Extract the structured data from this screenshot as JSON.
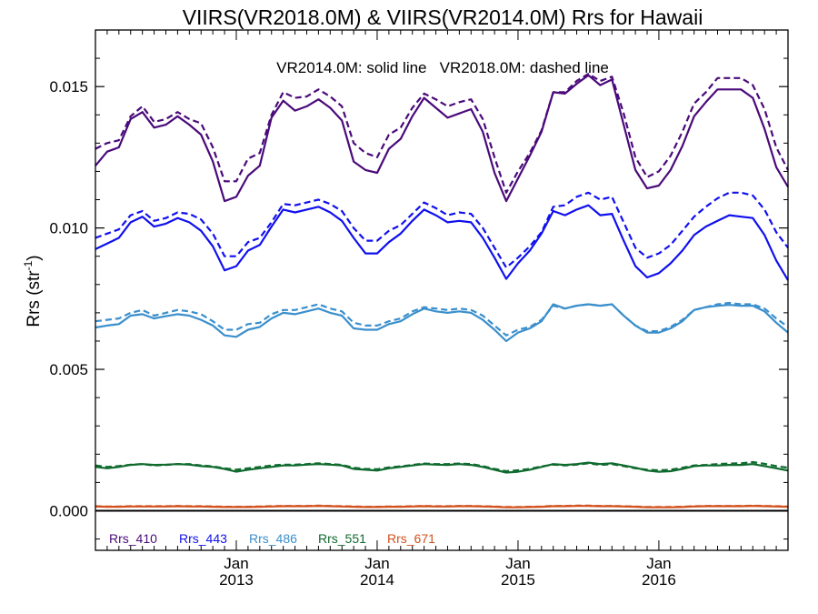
{
  "chart_data": {
    "type": "line",
    "title": "VIIRS(VR2018.0M) & VIIRS(VR2014.0M)  Rrs for Hawaii",
    "annotation": "VR2014.0M: solid line   VR2018.0M: dashed line",
    "ylabel": "Rrs (str",
    "ylabel_sup": "-1",
    "ylabel_close": ")",
    "ylim": [
      -0.0014,
      0.017
    ],
    "xlim": [
      "2012-01",
      "2016-12"
    ],
    "y_ticks": [
      {
        "value": 0.0,
        "label": "0.000"
      },
      {
        "value": 0.005,
        "label": "0.005"
      },
      {
        "value": 0.01,
        "label": "0.010"
      },
      {
        "value": 0.015,
        "label": "0.015"
      }
    ],
    "x_ticks": [
      {
        "value": "2013-01",
        "month": "Jan",
        "year": "2013"
      },
      {
        "value": "2014-01",
        "month": "Jan",
        "year": "2014"
      },
      {
        "value": "2015-01",
        "month": "Jan",
        "year": "2015"
      },
      {
        "value": "2016-01",
        "month": "Jan",
        "year": "2016"
      }
    ],
    "x_dates": [
      "2012-01",
      "2012-02",
      "2012-03",
      "2012-04",
      "2012-05",
      "2012-06",
      "2012-07",
      "2012-08",
      "2012-09",
      "2012-10",
      "2012-11",
      "2012-12",
      "2013-01",
      "2013-02",
      "2013-03",
      "2013-04",
      "2013-05",
      "2013-06",
      "2013-07",
      "2013-08",
      "2013-09",
      "2013-10",
      "2013-11",
      "2013-12",
      "2014-01",
      "2014-02",
      "2014-03",
      "2014-04",
      "2014-05",
      "2014-06",
      "2014-07",
      "2014-08",
      "2014-09",
      "2014-10",
      "2014-11",
      "2014-12",
      "2015-01",
      "2015-02",
      "2015-03",
      "2015-04",
      "2015-05",
      "2015-06",
      "2015-07",
      "2015-08",
      "2015-09",
      "2015-10",
      "2015-11",
      "2015-12",
      "2016-01",
      "2016-02",
      "2016-03",
      "2016-04",
      "2016-05",
      "2016-06",
      "2016-07",
      "2016-08",
      "2016-09",
      "2016-10",
      "2016-11",
      "2016-12"
    ],
    "series": [
      {
        "name": "Rrs_410",
        "color": "#4a0a7a",
        "solid": [
          0.0122,
          0.0127,
          0.01285,
          0.01385,
          0.0141,
          0.01355,
          0.01365,
          0.01395,
          0.01365,
          0.0133,
          0.01235,
          0.01095,
          0.0111,
          0.01185,
          0.0122,
          0.0139,
          0.0145,
          0.01415,
          0.0143,
          0.01455,
          0.01425,
          0.0138,
          0.01235,
          0.01205,
          0.01195,
          0.0128,
          0.01315,
          0.01395,
          0.0146,
          0.01425,
          0.0139,
          0.01405,
          0.0142,
          0.0134,
          0.01195,
          0.01095,
          0.01175,
          0.01255,
          0.0134,
          0.0148,
          0.01475,
          0.0151,
          0.0154,
          0.01505,
          0.01525,
          0.01365,
          0.01205,
          0.0114,
          0.0115,
          0.01205,
          0.0129,
          0.01395,
          0.01445,
          0.0149,
          0.0149,
          0.0149,
          0.0146,
          0.0135,
          0.01215,
          0.01145
        ],
        "dashed": [
          0.0128,
          0.013,
          0.0131,
          0.01395,
          0.0143,
          0.01375,
          0.01385,
          0.0141,
          0.01385,
          0.0137,
          0.01285,
          0.01165,
          0.01165,
          0.01245,
          0.01265,
          0.014,
          0.0148,
          0.0146,
          0.01465,
          0.0149,
          0.01465,
          0.0143,
          0.013,
          0.01265,
          0.0125,
          0.0133,
          0.01355,
          0.01425,
          0.01475,
          0.01455,
          0.0143,
          0.01445,
          0.01455,
          0.01385,
          0.0125,
          0.01125,
          0.012,
          0.01265,
          0.01345,
          0.0148,
          0.0148,
          0.0152,
          0.01545,
          0.0152,
          0.01535,
          0.01405,
          0.0125,
          0.0118,
          0.012,
          0.01255,
          0.0134,
          0.0144,
          0.0148,
          0.0153,
          0.0153,
          0.0153,
          0.01505,
          0.0142,
          0.01285,
          0.01205
        ]
      },
      {
        "name": "Rrs_443",
        "color": "#1010ee",
        "solid": [
          0.00925,
          0.00945,
          0.00965,
          0.0102,
          0.0104,
          0.01005,
          0.01015,
          0.01035,
          0.0102,
          0.0099,
          0.00935,
          0.0085,
          0.00865,
          0.0092,
          0.0094,
          0.01005,
          0.01065,
          0.01055,
          0.01065,
          0.01075,
          0.01055,
          0.01025,
          0.00965,
          0.0091,
          0.0091,
          0.0095,
          0.0098,
          0.01025,
          0.01065,
          0.01045,
          0.0102,
          0.01025,
          0.0102,
          0.00965,
          0.00895,
          0.0082,
          0.00875,
          0.0092,
          0.0098,
          0.0106,
          0.01045,
          0.01065,
          0.0108,
          0.01045,
          0.0105,
          0.00955,
          0.00865,
          0.00825,
          0.0084,
          0.00875,
          0.0092,
          0.00975,
          0.01005,
          0.01025,
          0.01045,
          0.0104,
          0.01035,
          0.00975,
          0.00885,
          0.00815
        ],
        "dashed": [
          0.00965,
          0.0098,
          0.00995,
          0.01045,
          0.0106,
          0.01025,
          0.01035,
          0.01055,
          0.0105,
          0.0103,
          0.0098,
          0.009,
          0.009,
          0.0095,
          0.00965,
          0.0102,
          0.01085,
          0.0108,
          0.0109,
          0.011,
          0.01085,
          0.0106,
          0.01,
          0.00955,
          0.00955,
          0.0099,
          0.0101,
          0.0105,
          0.0109,
          0.0107,
          0.01045,
          0.01055,
          0.0105,
          0.01,
          0.0093,
          0.0086,
          0.00895,
          0.00935,
          0.00985,
          0.01075,
          0.0108,
          0.0111,
          0.01125,
          0.011,
          0.0111,
          0.0102,
          0.0093,
          0.00895,
          0.0091,
          0.0094,
          0.0099,
          0.0104,
          0.01075,
          0.01105,
          0.01125,
          0.01125,
          0.01115,
          0.01065,
          0.00985,
          0.0093
        ]
      },
      {
        "name": "Rrs_486",
        "color": "#3a8fcc",
        "solid": [
          0.00648,
          0.00655,
          0.0066,
          0.0069,
          0.00695,
          0.0068,
          0.00688,
          0.00695,
          0.0069,
          0.00675,
          0.00655,
          0.0062,
          0.00615,
          0.0064,
          0.0065,
          0.0068,
          0.007,
          0.00695,
          0.00705,
          0.00715,
          0.007,
          0.0069,
          0.00645,
          0.0064,
          0.0064,
          0.0066,
          0.0067,
          0.00695,
          0.00715,
          0.00705,
          0.007,
          0.00705,
          0.007,
          0.00675,
          0.0064,
          0.006,
          0.0063,
          0.00645,
          0.0067,
          0.0073,
          0.00715,
          0.00725,
          0.0073,
          0.00725,
          0.0073,
          0.0069,
          0.00655,
          0.0063,
          0.0063,
          0.00645,
          0.0067,
          0.0071,
          0.0072,
          0.00725,
          0.00728,
          0.00725,
          0.00725,
          0.00705,
          0.00665,
          0.0063
        ],
        "dashed": [
          0.0067,
          0.00675,
          0.0068,
          0.007,
          0.0071,
          0.0069,
          0.007,
          0.0071,
          0.00705,
          0.00695,
          0.0067,
          0.0064,
          0.0064,
          0.0066,
          0.00665,
          0.00695,
          0.0071,
          0.0071,
          0.0072,
          0.0073,
          0.00715,
          0.00705,
          0.00665,
          0.00655,
          0.00655,
          0.0067,
          0.0068,
          0.00705,
          0.0072,
          0.00715,
          0.0071,
          0.00715,
          0.0071,
          0.0069,
          0.00655,
          0.0062,
          0.0064,
          0.0065,
          0.00675,
          0.00725,
          0.00715,
          0.00725,
          0.0073,
          0.00725,
          0.0073,
          0.0069,
          0.00655,
          0.00635,
          0.00635,
          0.0065,
          0.00675,
          0.0071,
          0.0072,
          0.0073,
          0.00735,
          0.0073,
          0.0073,
          0.00715,
          0.0068,
          0.0065
        ]
      },
      {
        "name": "Rrs_551",
        "color": "#0f6a2e",
        "solid": [
          0.00155,
          0.0015,
          0.00155,
          0.00162,
          0.00165,
          0.00162,
          0.00163,
          0.00165,
          0.00163,
          0.00158,
          0.00155,
          0.00148,
          0.00138,
          0.00145,
          0.0015,
          0.00155,
          0.0016,
          0.0016,
          0.00163,
          0.00165,
          0.00163,
          0.0016,
          0.00148,
          0.00145,
          0.00142,
          0.0015,
          0.00155,
          0.0016,
          0.00165,
          0.00163,
          0.00162,
          0.00165,
          0.00162,
          0.00155,
          0.00145,
          0.00135,
          0.00138,
          0.00145,
          0.00155,
          0.00165,
          0.00162,
          0.00165,
          0.0017,
          0.00165,
          0.00168,
          0.0016,
          0.00152,
          0.00142,
          0.00138,
          0.0014,
          0.00148,
          0.00158,
          0.0016,
          0.0016,
          0.00162,
          0.00162,
          0.00165,
          0.00158,
          0.0015,
          0.00142
        ],
        "dashed": [
          0.0016,
          0.00155,
          0.00158,
          0.00163,
          0.00165,
          0.0016,
          0.00162,
          0.00165,
          0.00165,
          0.0016,
          0.00157,
          0.0015,
          0.00145,
          0.0015,
          0.00155,
          0.0016,
          0.00163,
          0.00163,
          0.00165,
          0.00168,
          0.00165,
          0.00162,
          0.00152,
          0.00148,
          0.00147,
          0.00153,
          0.00157,
          0.00162,
          0.00167,
          0.00165,
          0.00165,
          0.00167,
          0.00165,
          0.00158,
          0.00148,
          0.0014,
          0.00143,
          0.00148,
          0.00157,
          0.00163,
          0.0016,
          0.00163,
          0.00168,
          0.00162,
          0.00165,
          0.00158,
          0.0015,
          0.00145,
          0.00143,
          0.00145,
          0.00152,
          0.0016,
          0.00162,
          0.00165,
          0.00167,
          0.00168,
          0.00172,
          0.00166,
          0.00158,
          0.00152
        ]
      },
      {
        "name": "Rrs_671",
        "color": "#d2501c",
        "solid": [
          0.00015,
          0.00014,
          0.00014,
          0.00015,
          0.00015,
          0.00015,
          0.00015,
          0.00016,
          0.00015,
          0.00015,
          0.00014,
          0.00013,
          0.00013,
          0.00013,
          0.00014,
          0.00015,
          0.00016,
          0.00016,
          0.00016,
          0.00017,
          0.00016,
          0.00015,
          0.00014,
          0.00013,
          0.00013,
          0.00014,
          0.00014,
          0.00015,
          0.00016,
          0.00015,
          0.00015,
          0.00016,
          0.00016,
          0.00015,
          0.00014,
          0.00012,
          0.00012,
          0.00013,
          0.00014,
          0.00016,
          0.00016,
          0.00017,
          0.00017,
          0.00016,
          0.00016,
          0.00015,
          0.00014,
          0.00012,
          0.00012,
          0.00012,
          0.00013,
          0.00015,
          0.00016,
          0.00016,
          0.00016,
          0.00016,
          0.00017,
          0.00016,
          0.00015,
          0.00014
        ],
        "dashed": [
          0.00016,
          0.00015,
          0.00015,
          0.00016,
          0.00016,
          0.00016,
          0.00016,
          0.00017,
          0.00016,
          0.00016,
          0.00015,
          0.00014,
          0.00014,
          0.00014,
          0.00015,
          0.00016,
          0.00017,
          0.00017,
          0.00017,
          0.00018,
          0.00017,
          0.00016,
          0.00015,
          0.00014,
          0.00014,
          0.00015,
          0.00015,
          0.00016,
          0.00017,
          0.00016,
          0.00016,
          0.00017,
          0.00017,
          0.00016,
          0.00015,
          0.00013,
          0.00013,
          0.00014,
          0.00015,
          0.00017,
          0.00017,
          0.00018,
          0.00018,
          0.00017,
          0.00017,
          0.00016,
          0.00015,
          0.00013,
          0.00013,
          0.00013,
          0.00014,
          0.00016,
          0.00017,
          0.00017,
          0.00017,
          0.00017,
          0.00018,
          0.00017,
          0.00016,
          0.00015
        ]
      }
    ],
    "zero_line": 0.0,
    "legend_position": "bottom-left, inside plot"
  }
}
